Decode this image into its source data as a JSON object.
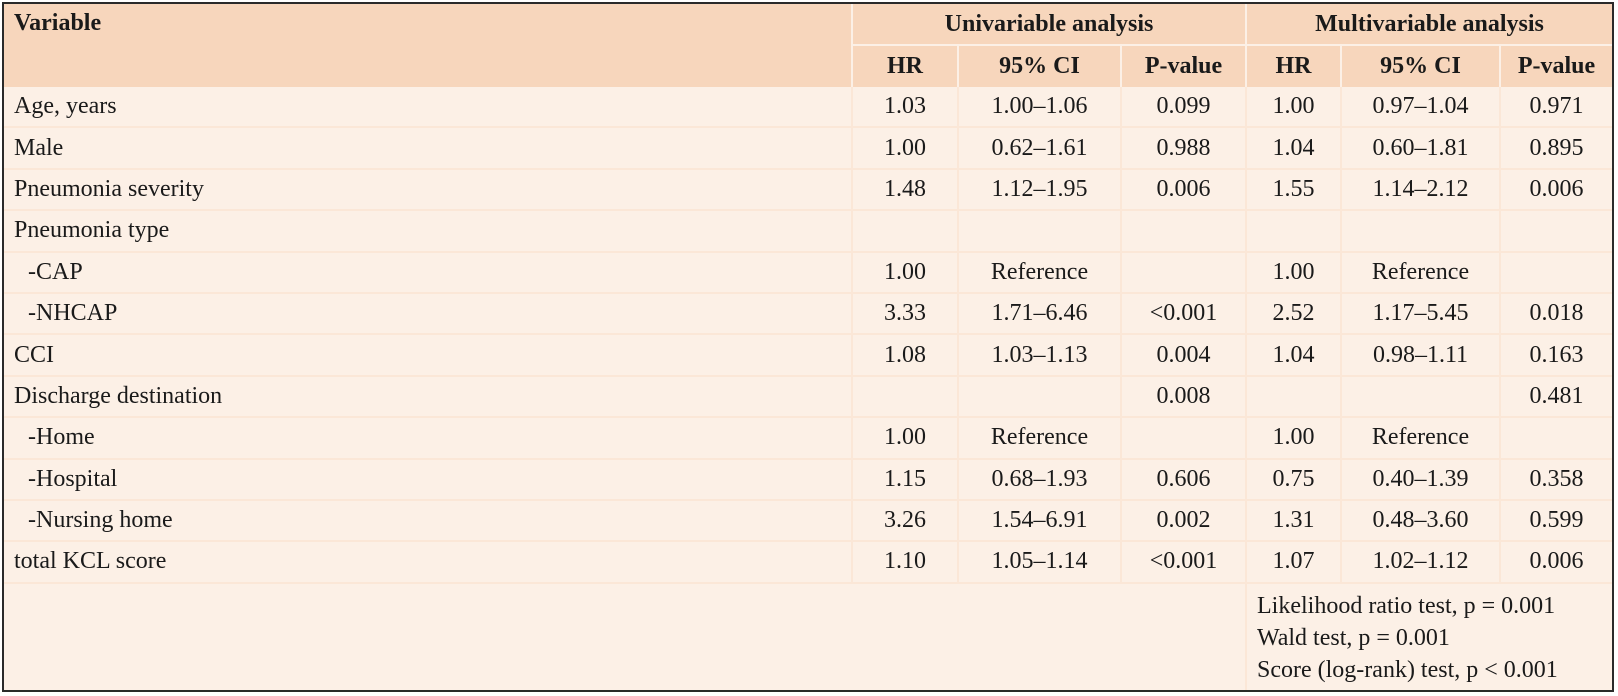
{
  "header": {
    "variable": "Variable",
    "univariable": "Univariable analysis",
    "multivariable": "Multivariable analysis",
    "hr": "HR",
    "ci": "95% CI",
    "pvalue": "P-value"
  },
  "rows": [
    {
      "label": "Age, years",
      "sub": false,
      "u_hr": "1.03",
      "u_ci": "1.00–1.06",
      "u_p": "0.099",
      "m_hr": "1.00",
      "m_ci": "0.97–1.04",
      "m_p": "0.971"
    },
    {
      "label": "Male",
      "sub": false,
      "u_hr": "1.00",
      "u_ci": "0.62–1.61",
      "u_p": "0.988",
      "m_hr": "1.04",
      "m_ci": "0.60–1.81",
      "m_p": "0.895"
    },
    {
      "label": "Pneumonia severity",
      "sub": false,
      "u_hr": "1.48",
      "u_ci": "1.12–1.95",
      "u_p": "0.006",
      "m_hr": "1.55",
      "m_ci": "1.14–2.12",
      "m_p": "0.006"
    },
    {
      "label": "Pneumonia type",
      "sub": false,
      "u_hr": "",
      "u_ci": "",
      "u_p": "",
      "m_hr": "",
      "m_ci": "",
      "m_p": ""
    },
    {
      "label": "-CAP",
      "sub": true,
      "u_hr": "1.00",
      "u_ci": "Reference",
      "u_p": "",
      "m_hr": "1.00",
      "m_ci": "Reference",
      "m_p": ""
    },
    {
      "label": "-NHCAP",
      "sub": true,
      "u_hr": "3.33",
      "u_ci": "1.71–6.46",
      "u_p": "<0.001",
      "m_hr": "2.52",
      "m_ci": "1.17–5.45",
      "m_p": "0.018"
    },
    {
      "label": "CCI",
      "sub": false,
      "u_hr": "1.08",
      "u_ci": "1.03–1.13",
      "u_p": "0.004",
      "m_hr": "1.04",
      "m_ci": "0.98–1.11",
      "m_p": "0.163"
    },
    {
      "label": "Discharge destination",
      "sub": false,
      "u_hr": "",
      "u_ci": "",
      "u_p": "0.008",
      "m_hr": "",
      "m_ci": "",
      "m_p": "0.481"
    },
    {
      "label": "-Home",
      "sub": true,
      "u_hr": "1.00",
      "u_ci": "Reference",
      "u_p": "",
      "m_hr": "1.00",
      "m_ci": "Reference",
      "m_p": ""
    },
    {
      "label": "-Hospital",
      "sub": true,
      "u_hr": "1.15",
      "u_ci": "0.68–1.93",
      "u_p": "0.606",
      "m_hr": "0.75",
      "m_ci": "0.40–1.39",
      "m_p": "0.358"
    },
    {
      "label": "-Nursing home",
      "sub": true,
      "u_hr": "3.26",
      "u_ci": "1.54–6.91",
      "u_p": "0.002",
      "m_hr": "1.31",
      "m_ci": "0.48–3.60",
      "m_p": "0.599"
    },
    {
      "label": "total KCL score",
      "sub": false,
      "u_hr": "1.10",
      "u_ci": "1.05–1.14",
      "u_p": "<0.001",
      "m_hr": "1.07",
      "m_ci": "1.02–1.12",
      "m_p": "0.006"
    }
  ],
  "notes": [
    "Likelihood ratio test, p = 0.001",
    "Wald test, p = 0.001",
    "Score (log-rank) test, p < 0.001"
  ]
}
